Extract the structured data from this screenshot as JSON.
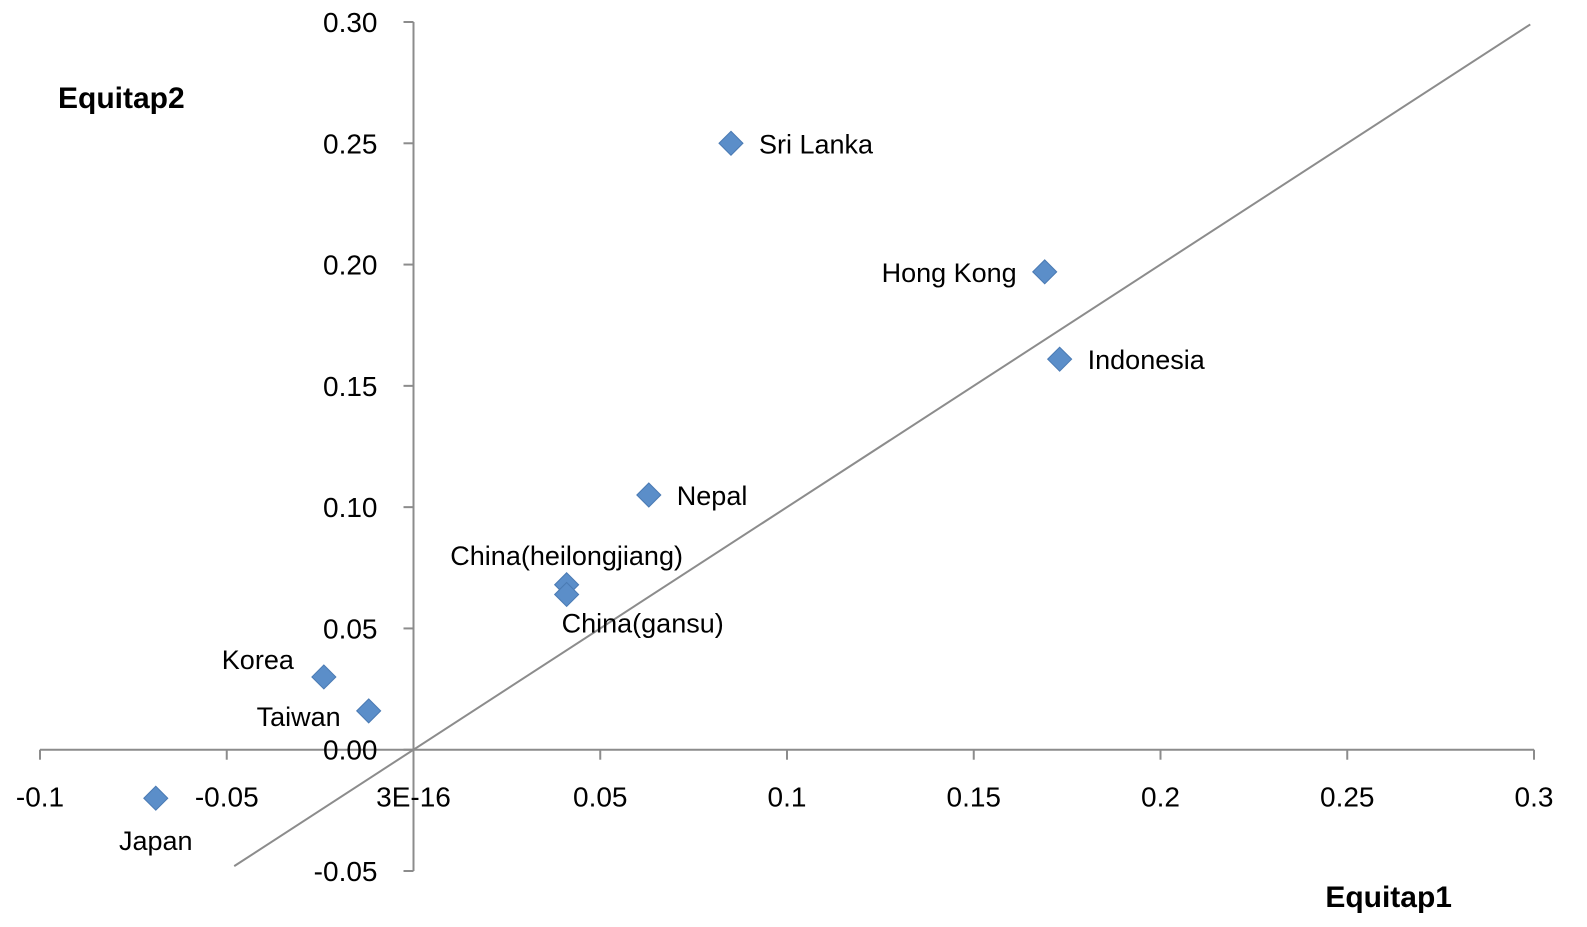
{
  "chart_data": {
    "type": "scatter",
    "xlabel": "Equitap1",
    "ylabel": "Equitap2",
    "xlim": [
      -0.1,
      0.3
    ],
    "ylim": [
      -0.05,
      0.3
    ],
    "x_ticks": [
      {
        "value": -0.1,
        "label": "-0.1"
      },
      {
        "value": -0.05,
        "label": "-0.05"
      },
      {
        "value": 0,
        "label": "3E-16"
      },
      {
        "value": 0.05,
        "label": "0.05"
      },
      {
        "value": 0.1,
        "label": "0.1"
      },
      {
        "value": 0.15,
        "label": "0.15"
      },
      {
        "value": 0.2,
        "label": "0.2"
      },
      {
        "value": 0.25,
        "label": "0.25"
      },
      {
        "value": 0.3,
        "label": "0.3"
      }
    ],
    "y_ticks": [
      {
        "value": -0.05,
        "label": "-0.05"
      },
      {
        "value": 0.0,
        "label": "0.00"
      },
      {
        "value": 0.05,
        "label": "0.05"
      },
      {
        "value": 0.1,
        "label": "0.10"
      },
      {
        "value": 0.15,
        "label": "0.15"
      },
      {
        "value": 0.2,
        "label": "0.20"
      },
      {
        "value": 0.25,
        "label": "0.25"
      },
      {
        "value": 0.3,
        "label": "0.30"
      }
    ],
    "points": [
      {
        "name": "Sri Lanka",
        "x": 0.085,
        "y": 0.25,
        "label_pos": "right"
      },
      {
        "name": "Hong Kong",
        "x": 0.169,
        "y": 0.197,
        "label_pos": "left"
      },
      {
        "name": "Indonesia",
        "x": 0.173,
        "y": 0.161,
        "label_pos": "right"
      },
      {
        "name": "Nepal",
        "x": 0.063,
        "y": 0.105,
        "label_pos": "right"
      },
      {
        "name": "China(heilongjiang)",
        "x": 0.041,
        "y": 0.068,
        "label_pos": "above"
      },
      {
        "name": "China(gansu)",
        "x": 0.041,
        "y": 0.064,
        "label_pos": "below-right"
      },
      {
        "name": "Korea",
        "x": -0.024,
        "y": 0.03,
        "label_pos": "above-left"
      },
      {
        "name": "Taiwan",
        "x": -0.012,
        "y": 0.016,
        "label_pos": "below-left"
      },
      {
        "name": "Japan",
        "x": -0.069,
        "y": -0.02,
        "label_pos": "below"
      }
    ],
    "reference_line": {
      "type": "y=x"
    },
    "grid": false,
    "legend": "none",
    "colors": {
      "marker": "#5b8ec9",
      "axis": "#8c8c8c",
      "line": "#8c8c8c"
    }
  }
}
